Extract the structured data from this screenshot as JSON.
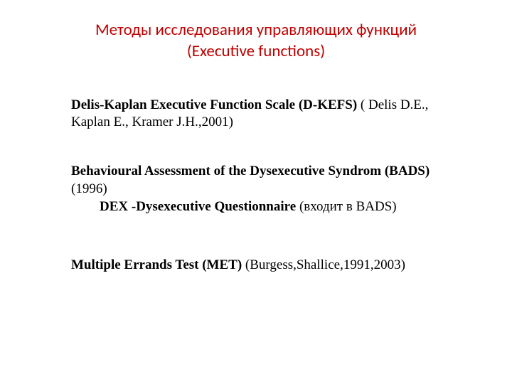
{
  "title": {
    "line1": "Методы исследования управляющих функций",
    "line2": "(Executive functions)"
  },
  "colors": {
    "title": "#c00000",
    "body_text": "#000000",
    "background": "#ffffff"
  },
  "typography": {
    "title_fontsize": 23,
    "body_fontsize": 19,
    "title_font_family": "Calibri",
    "body_font_family": "Times New Roman"
  },
  "entries": [
    {
      "bold": "Delis-Kaplan Executive Function Scale (D-KEFS)",
      "rest": " ( Delis D.E., Kaplan  E., Kramer J.H.,2001)"
    },
    {
      "bold": "Behavioural Assessment of the Dysexecutive Syndrom (BADS)",
      "rest": " (1996)",
      "sub_bold": "DEX  -Dysexecutive Questionnaire",
      "sub_rest": " (входит в BADS)"
    },
    {
      "bold": "Multiple  Errands  Test (MET)",
      "rest": " (Burgess,Shallice,1991,2003)"
    }
  ]
}
